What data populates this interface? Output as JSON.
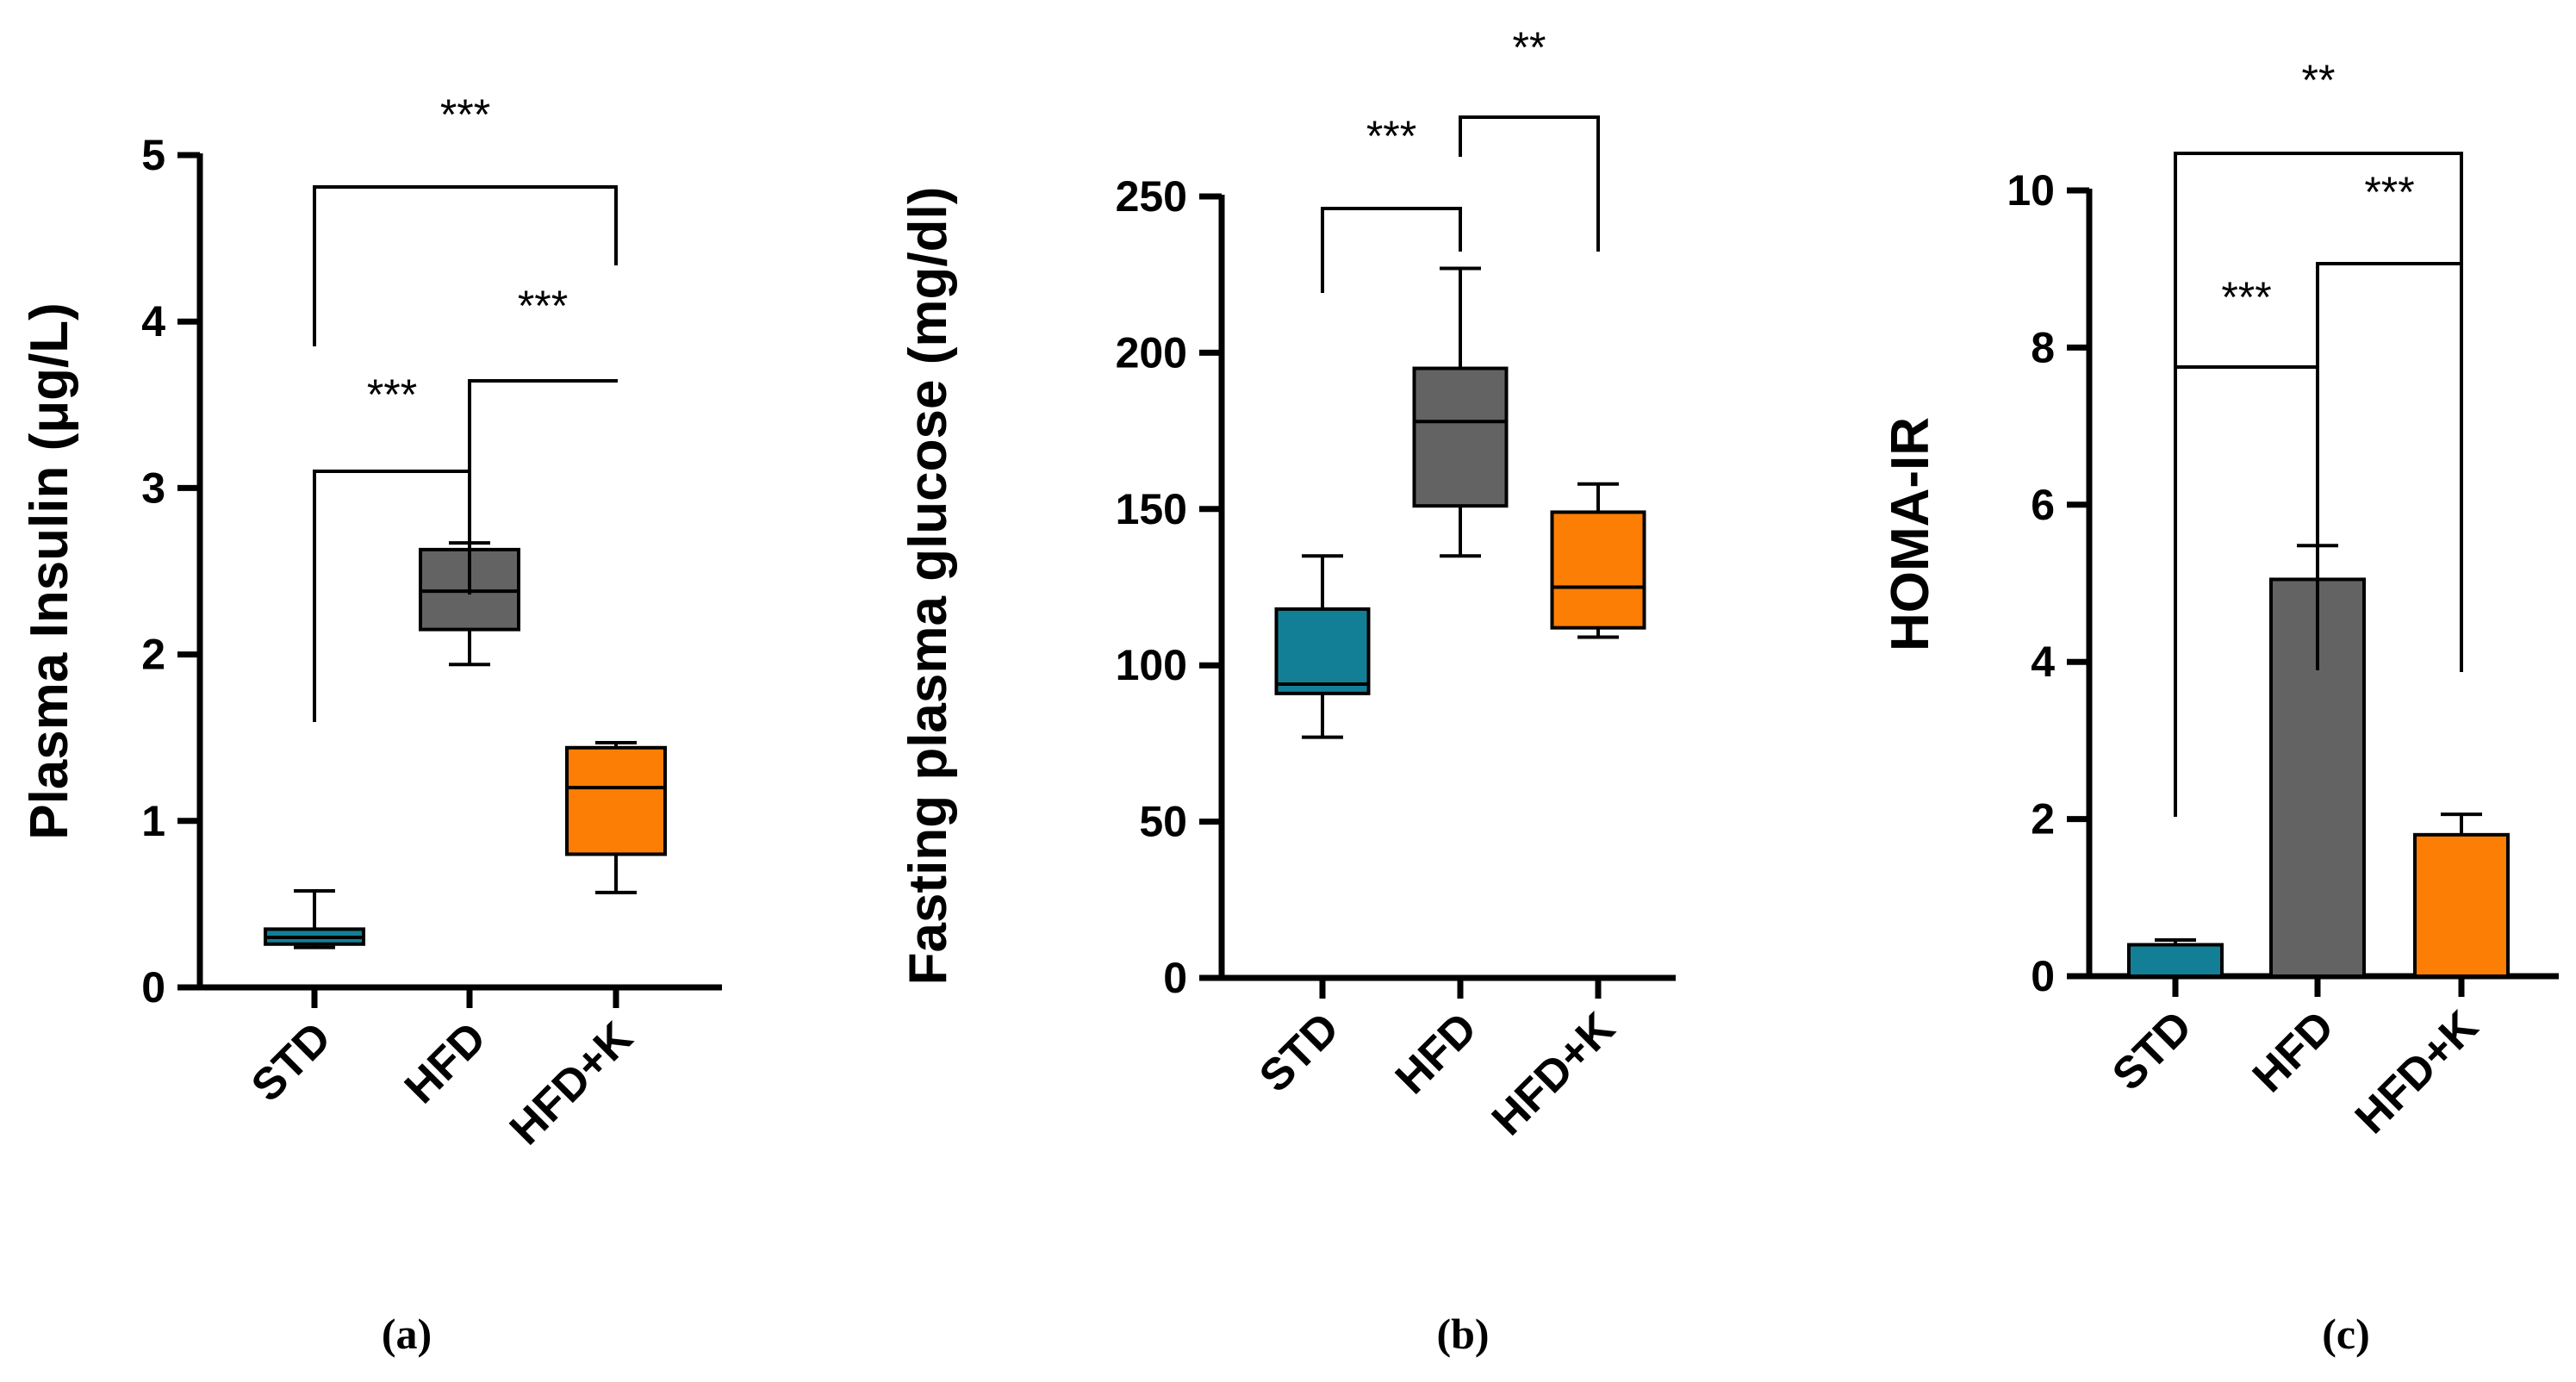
{
  "colors": {
    "STD": "#137f97",
    "HFD": "#636363",
    "HFD+K": "#fc7e05",
    "axis": "#000000"
  },
  "chart_data": [
    {
      "type": "box",
      "panel_label": "(a)",
      "ylabel": "Plasma Insulin (μg/L)",
      "ylim": [
        0,
        5
      ],
      "yticks": [
        "0",
        "1",
        "2",
        "3",
        "4",
        "5"
      ],
      "categories": [
        "STD",
        "HFD",
        "HFD+K"
      ],
      "boxes": [
        {
          "category": "STD",
          "min": 0.24,
          "q1": 0.26,
          "median": 0.3,
          "q3": 0.35,
          "max": 0.58
        },
        {
          "category": "HFD",
          "min": 1.94,
          "q1": 2.15,
          "median": 2.38,
          "q3": 2.63,
          "max": 2.67
        },
        {
          "category": "HFD+K",
          "min": 0.57,
          "q1": 0.8,
          "median": 1.2,
          "q3": 1.44,
          "max": 1.47
        }
      ],
      "significance": [
        {
          "from": "STD",
          "to": "HFD",
          "label": "***"
        },
        {
          "from": "HFD",
          "to": "HFD+K",
          "label": "***"
        },
        {
          "from": "STD",
          "to": "HFD+K",
          "label": "***"
        }
      ]
    },
    {
      "type": "box",
      "panel_label": "(b)",
      "ylabel": "Fasting plasma glucose (mg/dl)",
      "ylim": [
        0,
        250
      ],
      "yticks": [
        "0",
        "50",
        "100",
        "150",
        "200",
        "250"
      ],
      "categories": [
        "STD",
        "HFD",
        "HFD+K"
      ],
      "boxes": [
        {
          "category": "STD",
          "min": 77,
          "q1": 91,
          "median": 94,
          "q3": 118,
          "max": 135
        },
        {
          "category": "HFD",
          "min": 135,
          "q1": 151,
          "median": 178,
          "q3": 195,
          "max": 227
        },
        {
          "category": "HFD+K",
          "min": 109,
          "q1": 112,
          "median": 125,
          "q3": 149,
          "max": 158
        }
      ],
      "significance": [
        {
          "from": "STD",
          "to": "HFD",
          "label": "***"
        },
        {
          "from": "HFD",
          "to": "HFD+K",
          "label": "**"
        }
      ]
    },
    {
      "type": "bar",
      "panel_label": "(c)",
      "ylabel": "HOMA-IR",
      "ylim": [
        0,
        10
      ],
      "yticks": [
        "0",
        "2",
        "4",
        "6",
        "8",
        "10"
      ],
      "categories": [
        "STD",
        "HFD",
        "HFD+K"
      ],
      "bars": [
        {
          "category": "STD",
          "value": 0.4,
          "error_upper": 0.46
        },
        {
          "category": "HFD",
          "value": 5.05,
          "error_upper": 5.48
        },
        {
          "category": "HFD+K",
          "value": 1.8,
          "error_upper": 2.06
        }
      ],
      "significance": [
        {
          "from": "STD",
          "to": "HFD",
          "label": "***"
        },
        {
          "from": "HFD",
          "to": "HFD+K",
          "label": "***"
        },
        {
          "from": "STD",
          "to": "HFD+K",
          "label": "**"
        }
      ]
    }
  ]
}
